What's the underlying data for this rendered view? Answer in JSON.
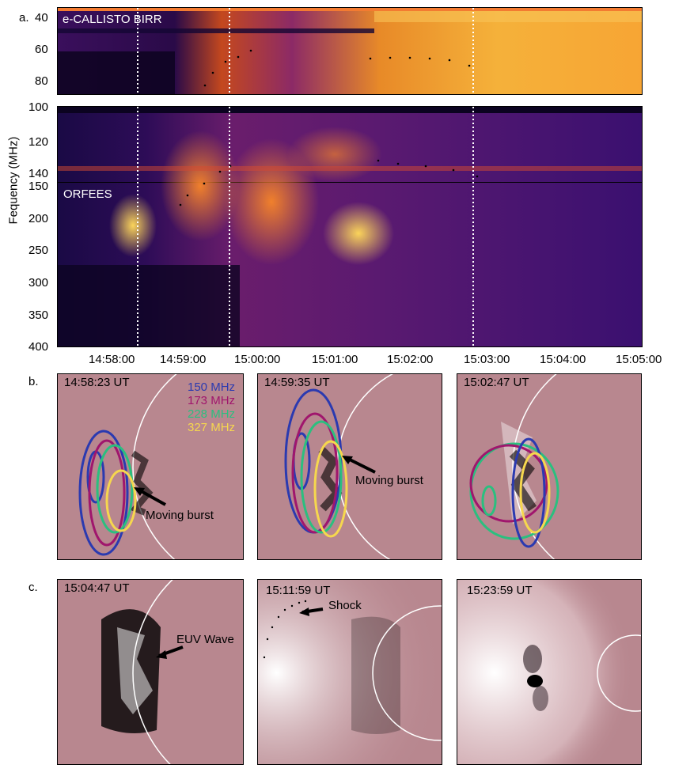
{
  "figure": {
    "panel_labels": {
      "a": "a.",
      "b": "b.",
      "c": "c."
    },
    "y_axis_label": "Fequency (MHz)"
  },
  "spectrogram": {
    "callisto": {
      "instrument_label": "e-CALLISTO BIRR",
      "y_ticks": [
        "40",
        "60",
        "80"
      ]
    },
    "middle": {
      "y_ticks": [
        "100",
        "120",
        "140"
      ]
    },
    "orfees": {
      "instrument_label": "ORFEES",
      "y_ticks": [
        "150",
        "200",
        "250",
        "300",
        "350",
        "400"
      ]
    },
    "x_ticks": [
      "14:58:00",
      "14:59:00",
      "15:00:00",
      "15:01:00",
      "15:02:00",
      "15:03:00",
      "15:04:00",
      "15:05:00"
    ]
  },
  "row_b": [
    {
      "time": "14:58:23 UT",
      "annotation": "Moving burst"
    },
    {
      "time": "14:59:35 UT",
      "annotation": "Moving burst"
    },
    {
      "time": "15:02:47 UT",
      "annotation": ""
    }
  ],
  "legend": [
    {
      "label": "150 MHz",
      "color": "#2b3ab0"
    },
    {
      "label": "173 MHz",
      "color": "#a0166d"
    },
    {
      "label": "228 MHz",
      "color": "#2bbf7f"
    },
    {
      "label": "327 MHz",
      "color": "#f6d74e"
    }
  ],
  "row_c": [
    {
      "time": "15:04:47 UT",
      "annotation": "EUV Wave"
    },
    {
      "time": "15:11:59 UT",
      "annotation": "Shock"
    },
    {
      "time": "15:23:59 UT",
      "annotation": ""
    }
  ],
  "colors": {
    "spectrogram_dark": "#170a3a",
    "spectrogram_mid": "#7a1f6e",
    "spectrogram_bright": "#f7b733",
    "diff_background": "#b8878f",
    "limb": "#ffffff"
  }
}
